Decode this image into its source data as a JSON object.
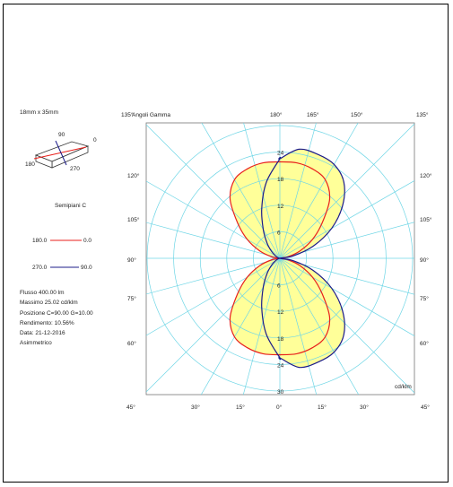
{
  "lamp": {
    "size_label": "18mm x 35mm",
    "axis_labels": [
      "90",
      "0",
      "180",
      "270"
    ]
  },
  "semipiani_label": "Semipiani C",
  "legend": [
    {
      "left": "180.0",
      "right": "0.0",
      "color": "#e8201c"
    },
    {
      "left": "270.0",
      "right": "90.0",
      "color": "#1c1c8a"
    }
  ],
  "info": {
    "flusso": "Flusso 400.00  lm",
    "massimo": "Massimo 25.02  cd/klm",
    "posizione": "Posizione C=90.00 G=10.00",
    "rendimento": "Rendimento:  10.56%",
    "data": "Data: 21-12-2016",
    "simmetria": "Asimmetrico"
  },
  "chart_data": {
    "type": "polar",
    "title": "Angoli Gamma",
    "unit": "cd/klm",
    "radial_ticks": [
      "6",
      "12",
      "18",
      "24",
      "30"
    ],
    "radial_max": 30,
    "top_angle_labels": [
      "135°",
      "180°",
      "165°",
      "150°",
      "135°"
    ],
    "bottom_angle_labels": [
      "45°",
      "30°",
      "15°",
      "0°",
      "15°",
      "30°",
      "45°"
    ],
    "left_angle_labels": [
      "120°",
      "105°",
      "90°",
      "75°",
      "60°"
    ],
    "right_angle_labels": [
      "120°",
      "105°",
      "90°",
      "75°",
      "60°"
    ],
    "fill_color": "#ffff99",
    "grid_color": "#6fd6e6",
    "series": [
      {
        "name": "180.0 — 0.0",
        "color": "#e8201c",
        "gamma_deg": [
          0,
          10,
          20,
          30,
          40,
          50,
          60,
          70,
          80,
          90,
          100,
          110,
          120,
          130,
          140,
          150,
          160,
          170,
          180
        ],
        "left_cdklm": [
          21.8,
          21.9,
          21.5,
          20.5,
          17.5,
          12.5,
          8.5,
          4.8,
          1.8,
          0,
          1.8,
          4.8,
          8.5,
          12.5,
          17.5,
          20.5,
          21.5,
          21.9,
          21.8
        ],
        "right_cdklm": [
          21.8,
          21.9,
          21.5,
          20.5,
          17.5,
          12.5,
          8.5,
          4.8,
          1.8,
          0,
          1.8,
          4.8,
          8.5,
          12.5,
          17.5,
          20.5,
          21.5,
          21.9,
          21.8
        ]
      },
      {
        "name": "270.0 — 90.0",
        "color": "#1c1c8a",
        "gamma_deg": [
          0,
          10,
          20,
          30,
          40,
          50,
          60,
          70,
          80,
          90,
          100,
          110,
          120,
          130,
          140,
          150,
          160,
          170,
          180
        ],
        "left_cdklm": [
          22.5,
          17.5,
          12.0,
          7.5,
          4.5,
          2.5,
          1.2,
          0.5,
          0.2,
          0,
          0.2,
          0.5,
          1.2,
          2.5,
          4.5,
          7.5,
          12.0,
          17.5,
          22.5
        ],
        "right_cdklm": [
          22.5,
          25.02,
          25.0,
          24.5,
          22.5,
          18.5,
          13.5,
          8.0,
          3.0,
          0,
          3.0,
          8.0,
          13.5,
          18.5,
          22.5,
          24.5,
          25.0,
          25.02,
          22.5
        ]
      }
    ]
  }
}
